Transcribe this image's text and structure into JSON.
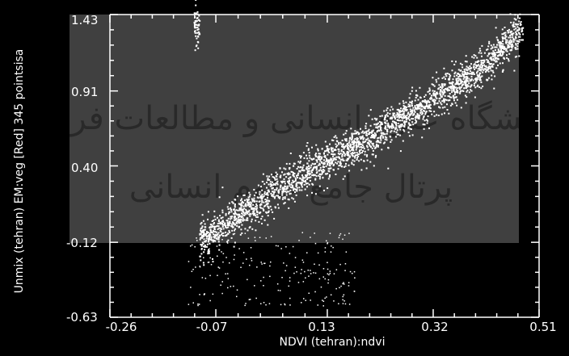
{
  "chart_data": {
    "type": "scatter",
    "title": "",
    "xlabel": "NDVI (tehran):ndvi",
    "ylabel": "Unmix (tehran) EM:veg [Red] 345 pointsisa",
    "xlim": [
      -0.26,
      0.51
    ],
    "ylim": [
      -0.63,
      1.43
    ],
    "x_ticks": [
      "-0.26",
      "-0.07",
      "0.13",
      "0.32",
      "0.51"
    ],
    "y_ticks": [
      "1.43",
      "0.91",
      "0.40",
      "-0.12",
      "-0.63"
    ],
    "grid": false,
    "point_color": "#ffffff",
    "background_color": "#000000",
    "trend": [
      {
        "x": -0.1,
        "y": -0.1
      },
      {
        "x": 0.0,
        "y": 0.15
      },
      {
        "x": 0.1,
        "y": 0.38
      },
      {
        "x": 0.2,
        "y": 0.58
      },
      {
        "x": 0.3,
        "y": 0.82
      },
      {
        "x": 0.4,
        "y": 1.05
      },
      {
        "x": 0.48,
        "y": 1.35
      }
    ]
  },
  "watermark": {
    "line1": "پژوهشگاه علوم انسانی و مطالعات فرهنگی",
    "line2": "پرتال جامع علوم انسانی"
  }
}
